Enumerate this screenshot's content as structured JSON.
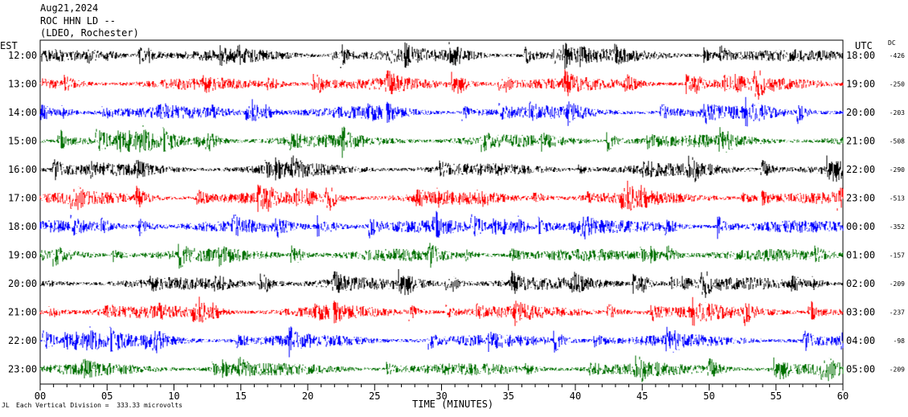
{
  "header": {
    "date": "Aug21,2024",
    "station": "ROC HHN LD --",
    "network": "(LDEO, Rochester)"
  },
  "labels": {
    "left_axis": "EST",
    "right_axis": "UTC",
    "dc": "DC",
    "footnote": "Each Vertical Division =  333.33 microvolts",
    "footmark": "JL"
  },
  "chart_data": {
    "type": "line",
    "xlabel": "TIME (MINUTES)",
    "xlim": [
      0,
      60
    ],
    "x_ticks": [
      "00",
      "05",
      "10",
      "15",
      "20",
      "25",
      "30",
      "35",
      "40",
      "45",
      "50",
      "55",
      "60"
    ],
    "x_tick_values": [
      0,
      5,
      10,
      15,
      20,
      25,
      30,
      35,
      40,
      45,
      50,
      55,
      60
    ],
    "grid": false,
    "trace_colors": [
      "#000000",
      "#ff0000",
      "#0000ff",
      "#007000"
    ],
    "rows": [
      {
        "est": "12:00",
        "utc": "18:00",
        "dc": "-426"
      },
      {
        "est": "13:00",
        "utc": "19:00",
        "dc": "-250"
      },
      {
        "est": "14:00",
        "utc": "20:00",
        "dc": "-203"
      },
      {
        "est": "15:00",
        "utc": "21:00",
        "dc": "-508"
      },
      {
        "est": "16:00",
        "utc": "22:00",
        "dc": "-290"
      },
      {
        "est": "17:00",
        "utc": "23:00",
        "dc": "-513"
      },
      {
        "est": "18:00",
        "utc": "00:00",
        "dc": "-352"
      },
      {
        "est": "19:00",
        "utc": "01:00",
        "dc": "-157"
      },
      {
        "est": "20:00",
        "utc": "02:00",
        "dc": "-209"
      },
      {
        "est": "21:00",
        "utc": "03:00",
        "dc": "-237"
      },
      {
        "est": "22:00",
        "utc": "04:00",
        "dc": "-98"
      },
      {
        "est": "23:00",
        "utc": "05:00",
        "dc": "-209"
      }
    ]
  }
}
